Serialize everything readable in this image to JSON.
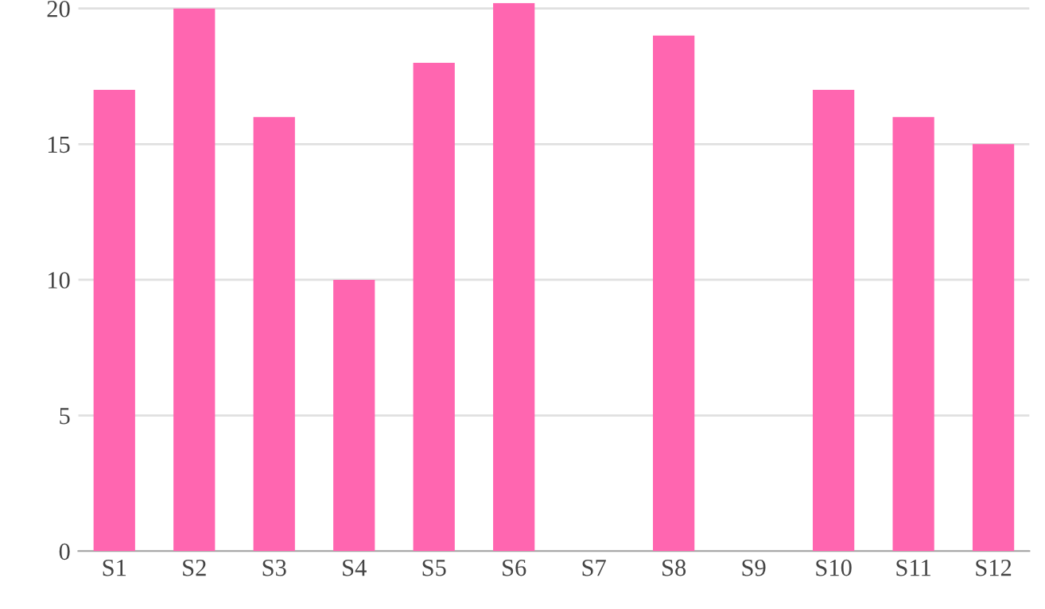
{
  "chart_data": {
    "type": "bar",
    "categories": [
      "S1",
      "S2",
      "S3",
      "S4",
      "S5",
      "S6",
      "S7",
      "S8",
      "S9",
      "S10",
      "S11",
      "S12"
    ],
    "values": [
      17,
      20,
      16,
      10,
      18,
      20.2,
      0,
      19,
      0,
      17,
      16,
      15
    ],
    "color": "#ff66b0",
    "ylim": [
      0,
      20.2
    ],
    "yticks": [
      0,
      5,
      10,
      15,
      20
    ],
    "grid": "y"
  }
}
